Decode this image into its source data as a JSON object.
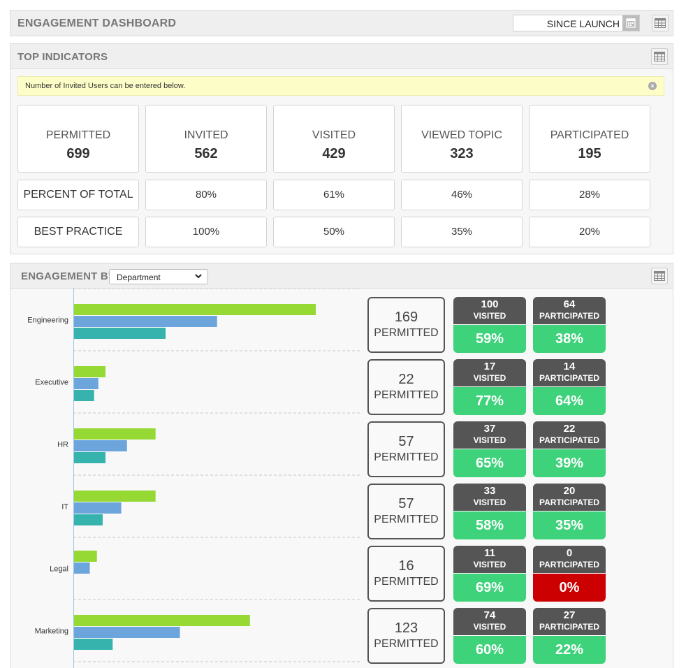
{
  "header": {
    "title": "ENGAGEMENT DASHBOARD",
    "date_range": "SINCE LAUNCH"
  },
  "top_indicators": {
    "title": "TOP INDICATORS",
    "notice": "Number of Invited Users can be entered below.",
    "cards": [
      {
        "label": "PERMITTED",
        "value": "699"
      },
      {
        "label": "INVITED",
        "value": "562"
      },
      {
        "label": "VISITED",
        "value": "429"
      },
      {
        "label": "VIEWED TOPIC",
        "value": "323"
      },
      {
        "label": "PARTICIPATED",
        "value": "195"
      }
    ],
    "percent_row": {
      "label": "PERCENT OF TOTAL",
      "values": [
        "80%",
        "61%",
        "46%",
        "28%"
      ]
    },
    "best_row": {
      "label": "BEST PRACTICE",
      "values": [
        "100%",
        "50%",
        "35%",
        "20%"
      ]
    }
  },
  "engagement": {
    "title": "ENGAGEMENT BY:",
    "group_by": "Department",
    "permitted_label": "PERMITTED",
    "visited_label": "VISITED",
    "participated_label": "PARTICIPATED",
    "rows": [
      {
        "dept": "Engineering",
        "permitted": "169",
        "visited": "100",
        "visited_pct": "59%",
        "participated": "64",
        "participated_pct": "38%",
        "alert": false
      },
      {
        "dept": "Executive",
        "permitted": "22",
        "visited": "17",
        "visited_pct": "77%",
        "participated": "14",
        "participated_pct": "64%",
        "alert": false
      },
      {
        "dept": "HR",
        "permitted": "57",
        "visited": "37",
        "visited_pct": "65%",
        "participated": "22",
        "participated_pct": "39%",
        "alert": false
      },
      {
        "dept": "IT",
        "permitted": "57",
        "visited": "33",
        "visited_pct": "58%",
        "participated": "20",
        "participated_pct": "35%",
        "alert": false
      },
      {
        "dept": "Legal",
        "permitted": "16",
        "visited": "11",
        "visited_pct": "69%",
        "participated": "0",
        "participated_pct": "0%",
        "alert": true
      },
      {
        "dept": "Marketing",
        "permitted": "123",
        "visited": "74",
        "visited_pct": "60%",
        "participated": "27",
        "participated_pct": "22%",
        "alert": false
      }
    ]
  },
  "chart_data": {
    "type": "bar",
    "orientation": "horizontal",
    "categories": [
      "Engineering",
      "Executive",
      "HR",
      "IT",
      "Legal",
      "Marketing"
    ],
    "series": [
      {
        "values": [
          169,
          22,
          57,
          57,
          16,
          123
        ],
        "color": "#96d935"
      },
      {
        "values": [
          100,
          17,
          37,
          33,
          11,
          74
        ],
        "color": "#6ca4dc"
      },
      {
        "values": [
          64,
          14,
          22,
          20,
          0,
          27
        ],
        "color": "#36b3ad"
      }
    ],
    "xlim": [
      0,
      169
    ],
    "grid": true
  },
  "colors": {
    "green_bar": "#96d935",
    "blue_bar": "#6ca4dc",
    "teal_bar": "#36b3ad",
    "good": "#3ed27a",
    "alert": "#cc0000",
    "dark": "#555555"
  }
}
